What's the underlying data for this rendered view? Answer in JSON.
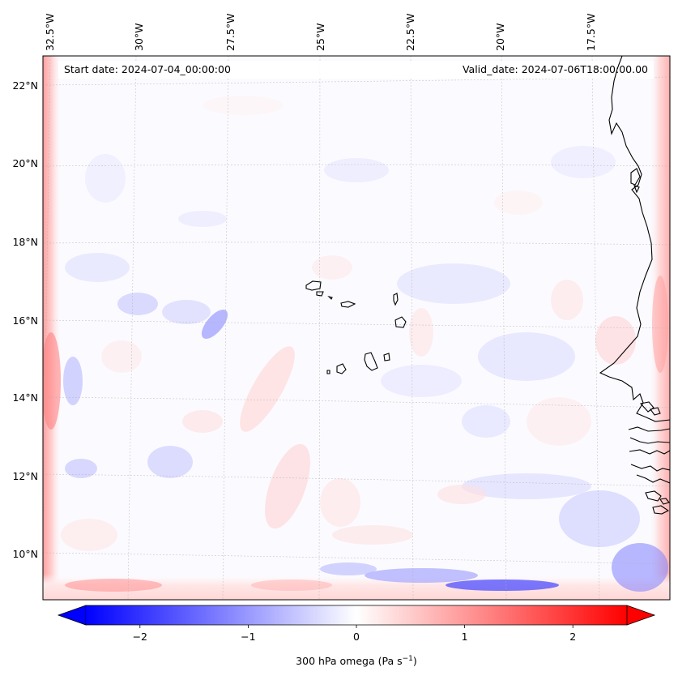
{
  "map": {
    "start_label": "Start date: 2024-07-04_00:00:00",
    "valid_label": "Valid_date: 2024-07-06T18:00:00.00",
    "lon_ticks": [
      "32.5°W",
      "30°W",
      "27.5°W",
      "25°W",
      "22.5°W",
      "20°W",
      "17.5°W"
    ],
    "lat_ticks": [
      "22°N",
      "20°N",
      "18°N",
      "16°N",
      "14°N",
      "12°N",
      "10°N"
    ],
    "variable": "300 hPa omega",
    "units": "Pa s",
    "units_exponent": "−1",
    "colormap": "bwr",
    "colors": {
      "negative": "#0000ff",
      "zero": "#ffffff",
      "positive": "#ff0000",
      "coast": "#000000",
      "grid": "#b0b0b0"
    }
  },
  "colorbar": {
    "ticks": [
      "−2",
      "−1",
      "0",
      "1",
      "2"
    ],
    "tick_values": [
      -2,
      -1,
      0,
      1,
      2
    ],
    "range": [
      -2.5,
      2.5
    ],
    "extend": "both"
  }
}
